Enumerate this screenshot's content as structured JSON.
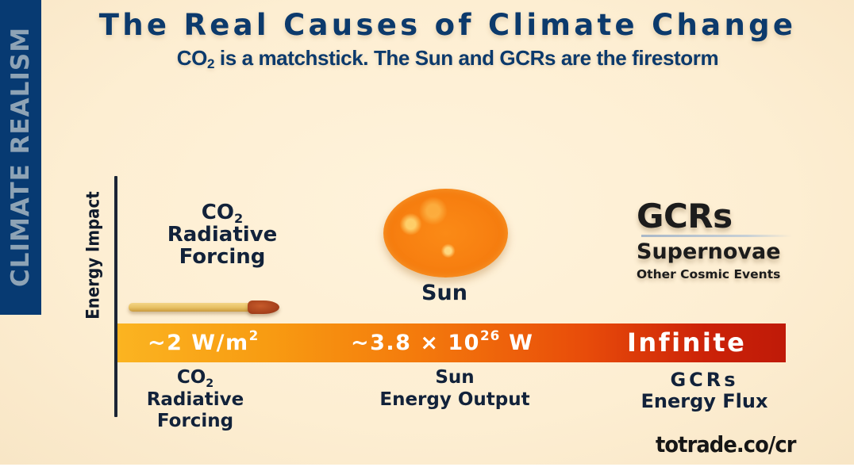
{
  "side_band": {
    "text": "CLIMATE REALISM",
    "color": "#073a72",
    "text_color": "#8ea3b5"
  },
  "header": {
    "title": "The Real Causes of Climate Change",
    "subtitle_prefix": "CO",
    "subtitle_sub": "2",
    "subtitle_rest": " is a matchstick. The Sun and GCRs are the firestorm"
  },
  "axis": {
    "y_label": "Energy Impact"
  },
  "upper_labels": {
    "co2": {
      "line1_prefix": "CO",
      "line1_sub": "2",
      "line2": "Radiative",
      "line3": "Forcing",
      "icon": "matchstick-icon"
    },
    "sun": {
      "label": "Sun",
      "icon": "sun-icon"
    },
    "gcrs": {
      "title": "GCRs",
      "line2": "Supernovae",
      "line3": "Other Cosmic Events"
    }
  },
  "energy_bar": {
    "gradient": [
      "#fbb421",
      "#f47a0c",
      "#bf1a08"
    ],
    "values": {
      "co2_prefix": "~2 W/m",
      "co2_sup": "2",
      "sun_prefix": "~3.8 × 10",
      "sun_sup": "26",
      "sun_suffix": " W",
      "gcrs": "Infinite"
    }
  },
  "lower_labels": {
    "co2": {
      "line1_prefix": "CO",
      "line1_sub": "2",
      "line2": "Radiative",
      "line3": "Forcing"
    },
    "sun": {
      "line1": "Sun",
      "line2": "Energy Output"
    },
    "gcrs": {
      "line1": "GCRs",
      "line2": "Energy Flux"
    }
  },
  "footer": {
    "url": "totrade.co/cr"
  },
  "colors": {
    "background": "#fcefd3",
    "navy_text": "#0c3a6c",
    "dark_text": "#12223a"
  }
}
